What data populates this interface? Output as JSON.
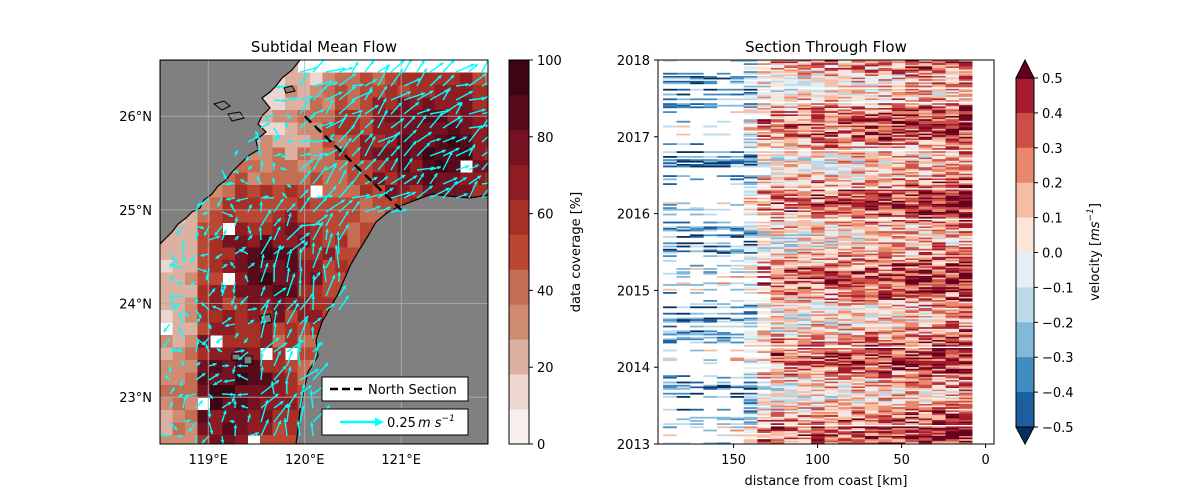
{
  "chart_data": [
    {
      "type": "heatmap",
      "title": "Subtidal Mean Flow",
      "xlabel": "",
      "ylabel": "",
      "x_tick_labels": [
        "119°E",
        "120°E",
        "121°E"
      ],
      "x_tick_values": [
        119,
        120,
        121
      ],
      "y_tick_labels": [
        "23°N",
        "24°N",
        "25°N",
        "26°N"
      ],
      "y_tick_values": [
        23,
        24,
        25,
        26
      ],
      "xlim": [
        118.5,
        121.9
      ],
      "ylim": [
        22.5,
        26.6
      ],
      "grid": true,
      "colorbar": {
        "label": "data coverage [%]",
        "range": [
          0,
          100
        ],
        "ticks": [
          0,
          20,
          40,
          60,
          80,
          100
        ],
        "tick_labels": [
          "0",
          "20",
          "40",
          "60",
          "80",
          "100"
        ],
        "colors": [
          "#f7f0ee",
          "#ecd6cf",
          "#dcb1a1",
          "#cf8c72",
          "#c46d52",
          "#b94733",
          "#a73026",
          "#8f1c22",
          "#741221",
          "#560a1a",
          "#3d0511"
        ]
      },
      "legend": {
        "position": "bottom-right",
        "entries": [
          {
            "label": "North Section",
            "style": "dashed-black-line"
          },
          {
            "label": "0.25",
            "unit_base": "m s",
            "unit_exp": "−1",
            "style": "cyan-arrow"
          }
        ]
      },
      "north_section": {
        "start": [
          120.0,
          26.0
        ],
        "end": [
          121.0,
          25.0
        ]
      },
      "vector_color": "#00ffff",
      "land_color": "#808080"
    },
    {
      "type": "heatmap",
      "title": "Section Through Flow",
      "xlabel": "distance from coast [km]",
      "ylabel": "",
      "x_tick_labels": [
        "150",
        "100",
        "50",
        "0"
      ],
      "x_tick_values": [
        150,
        100,
        50,
        0
      ],
      "xlim": [
        195,
        -5
      ],
      "y_tick_labels": [
        "2013",
        "2014",
        "2015",
        "2016",
        "2017",
        "2018"
      ],
      "y_tick_values": [
        2013,
        2014,
        2015,
        2016,
        2017,
        2018
      ],
      "ylim": [
        2013,
        2018
      ],
      "colorbar": {
        "label_text": "velocity [",
        "label_unit": "ms",
        "label_exp": "−1",
        "label_close": "]",
        "range": [
          -0.5,
          0.5
        ],
        "extend": "both",
        "ticks": [
          0.5,
          0.4,
          0.3,
          0.2,
          0.1,
          0.0,
          -0.1,
          -0.2,
          -0.3,
          -0.4,
          -0.5
        ],
        "tick_labels": [
          "0.5",
          "0.4",
          "0.3",
          "0.2",
          "0.1",
          "0.0",
          "−0.1",
          "−0.2",
          "−0.3",
          "−0.4",
          "−0.5"
        ],
        "colors_top_to_bottom": [
          "#a51a2c",
          "#cb4f48",
          "#e8876b",
          "#f7bda3",
          "#fbe4d8",
          "#e4eef4",
          "#bcd8e9",
          "#82b8d8",
          "#3f8dc1",
          "#1c5e9f"
        ],
        "extend_high_color": "#67001f",
        "extend_low_color": "#053061"
      }
    }
  ]
}
